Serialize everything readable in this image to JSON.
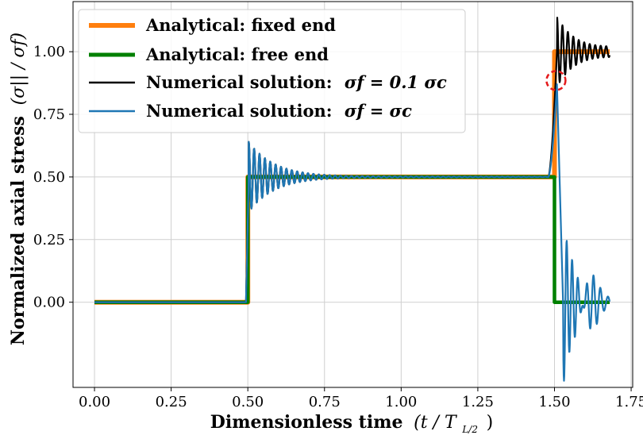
{
  "chart_data": {
    "type": "line",
    "title": "",
    "xlabel": "Dimensionless time (t / T_{L/2})",
    "xlabel_main": "Dimensionless time",
    "xlabel_math": "(t / T",
    "xlabel_sub": "L/2",
    "xlabel_close": ")",
    "ylabel": "Normalized axial stress (σ|| / σf)",
    "ylabel_main": "Normalized axial stress",
    "ylabel_math": "(σ|| / σf)",
    "xlim": [
      -0.07,
      1.755
    ],
    "ylim": [
      -0.34,
      1.2
    ],
    "xticks": [
      0.0,
      0.25,
      0.5,
      0.75,
      1.0,
      1.25,
      1.5,
      1.75
    ],
    "xtick_labels": [
      "0.00",
      "0.25",
      "0.50",
      "0.75",
      "1.00",
      "1.25",
      "1.50",
      "1.75"
    ],
    "yticks": [
      0.0,
      0.25,
      0.5,
      0.75,
      1.0
    ],
    "ytick_labels": [
      "0.00",
      "0.25",
      "0.50",
      "0.75",
      "1.00"
    ],
    "grid": true,
    "legend_position": "top-left",
    "series": [
      {
        "name": "Analytical: fixed end",
        "color": "#ff7f0e",
        "x": [
          0.0,
          0.5,
          0.5,
          1.5,
          1.5,
          1.68
        ],
        "y": [
          0.0,
          0.0,
          0.5,
          0.5,
          1.0,
          1.0
        ]
      },
      {
        "name": "Analytical: free end",
        "color": "#008000",
        "x": [
          0.0,
          0.5,
          0.5,
          1.5,
          1.5,
          1.68
        ],
        "y": [
          0.0,
          0.0,
          0.5,
          0.5,
          0.0,
          0.0
        ]
      },
      {
        "name": "Numerical solution: σf = 0.1 σc",
        "legend_prefix": "Numerical solution:",
        "legend_math": "σf = 0.1 σc",
        "color": "#000000",
        "behavior": "step at 0.5 to 0.5 with decaying ringing (first peak ~0.64); step at 1.5 up to 1.0 with ringing, first peak ~1.14 at t≈1.52"
      },
      {
        "name": "Numerical solution: σf = σc",
        "legend_prefix": "Numerical solution:",
        "legend_math": "σf = σc",
        "color": "#1f77b4",
        "behavior": "step at 0.5 to 0.5 with decaying ringing (first peak ~0.64); at 1.5 peaks ~0.87 then drops to 0 with oscillation, min ~-0.33 at t≈1.54"
      }
    ],
    "annotation": {
      "type": "dashed-circle",
      "color": "#e41a1c",
      "x": 1.505,
      "y": 0.885
    }
  }
}
